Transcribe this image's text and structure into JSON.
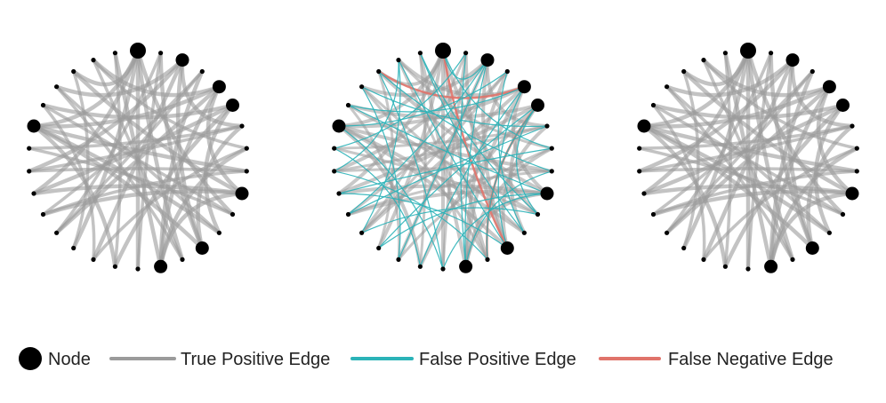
{
  "colors": {
    "node": "#000000",
    "true_positive": "#9b9b9b",
    "false_positive": "#2bb3b8",
    "false_negative": "#e0736a"
  },
  "legend": {
    "node_label": "Node",
    "true_positive_label": "True Positive Edge",
    "false_positive_label": "False Positive Edge",
    "false_negative_label": "False Negative Edge"
  },
  "graph": {
    "node_count": 30,
    "large_nodes": [
      0,
      2,
      4,
      5,
      9,
      12,
      14,
      24
    ],
    "true_edges": [
      [
        0,
        15
      ],
      [
        0,
        18
      ],
      [
        0,
        21
      ],
      [
        0,
        24
      ],
      [
        0,
        10
      ],
      [
        0,
        13
      ],
      [
        0,
        27
      ],
      [
        2,
        12
      ],
      [
        2,
        17
      ],
      [
        2,
        22
      ],
      [
        2,
        26
      ],
      [
        4,
        9
      ],
      [
        4,
        14
      ],
      [
        4,
        19
      ],
      [
        4,
        24
      ],
      [
        4,
        28
      ],
      [
        5,
        11
      ],
      [
        5,
        16
      ],
      [
        5,
        21
      ],
      [
        5,
        25
      ],
      [
        9,
        14
      ],
      [
        9,
        20
      ],
      [
        9,
        27
      ],
      [
        12,
        24
      ],
      [
        12,
        1
      ],
      [
        12,
        6
      ],
      [
        14,
        29
      ],
      [
        14,
        3
      ],
      [
        14,
        7
      ],
      [
        24,
        8
      ],
      [
        24,
        11
      ],
      [
        24,
        16
      ],
      [
        3,
        19
      ],
      [
        6,
        22
      ],
      [
        7,
        17
      ],
      [
        8,
        20
      ],
      [
        10,
        23
      ],
      [
        11,
        26
      ],
      [
        13,
        28
      ],
      [
        15,
        1
      ],
      [
        16,
        29
      ],
      [
        18,
        27
      ],
      [
        20,
        3
      ],
      [
        22,
        8
      ],
      [
        23,
        6
      ],
      [
        25,
        10
      ],
      [
        26,
        13
      ],
      [
        28,
        7
      ],
      [
        19,
        1
      ],
      [
        21,
        9
      ],
      [
        17,
        25
      ],
      [
        2,
        6
      ]
    ],
    "false_positive_edges": [
      [
        0,
        2
      ],
      [
        0,
        7
      ],
      [
        1,
        14
      ],
      [
        2,
        20
      ],
      [
        3,
        11
      ],
      [
        3,
        24
      ],
      [
        4,
        16
      ],
      [
        5,
        18
      ],
      [
        6,
        26
      ],
      [
        7,
        21
      ],
      [
        8,
        14
      ],
      [
        9,
        25
      ],
      [
        10,
        19
      ],
      [
        11,
        29
      ],
      [
        12,
        28
      ],
      [
        13,
        5
      ],
      [
        15,
        27
      ],
      [
        16,
        23
      ],
      [
        17,
        2
      ],
      [
        18,
        9
      ],
      [
        19,
        28
      ],
      [
        20,
        6
      ],
      [
        21,
        12
      ],
      [
        22,
        13
      ],
      [
        23,
        1
      ],
      [
        24,
        15
      ],
      [
        25,
        4
      ],
      [
        26,
        17
      ],
      [
        27,
        8
      ],
      [
        28,
        22
      ],
      [
        29,
        10
      ],
      [
        4,
        12
      ],
      [
        5,
        10
      ],
      [
        9,
        15
      ],
      [
        2,
        14
      ]
    ],
    "false_negative_edges": [
      [
        27,
        4
      ],
      [
        0,
        12
      ],
      [
        5,
        13
      ]
    ]
  }
}
